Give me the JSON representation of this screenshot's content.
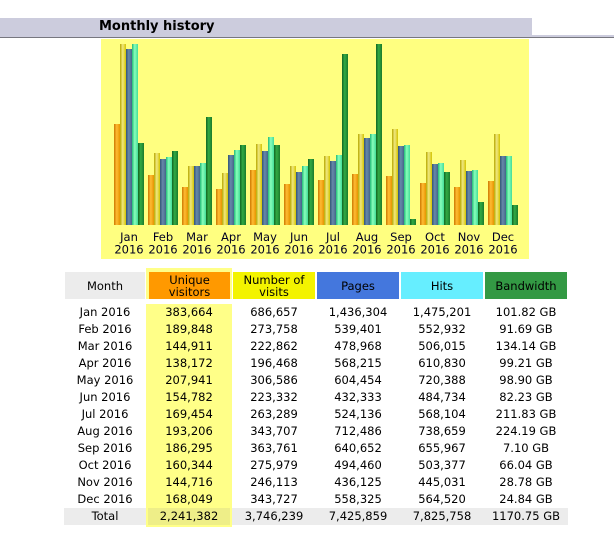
{
  "section": {
    "title": "Monthly history"
  },
  "colors": {
    "header_bg": "#ccccdd",
    "chart_bg": "#ffff80",
    "visitors": "#ff9900",
    "visits": "#f3f300",
    "pages": "#4477dd",
    "hits": "#66eeff",
    "bandwidth": "#339944",
    "visitors_column_bg": "#ffff88",
    "total_row_bg": "#ececec"
  },
  "table": {
    "headers": {
      "month": "Month",
      "visitors": "Unique visitors",
      "visits": "Number of visits",
      "pages": "Pages",
      "hits": "Hits",
      "bandwidth": "Bandwidth"
    },
    "rows": [
      {
        "month": "Jan 2016",
        "visitors": "383,664",
        "visits": "686,657",
        "pages": "1,436,304",
        "hits": "1,475,201",
        "bandwidth": "101.82 GB"
      },
      {
        "month": "Feb 2016",
        "visitors": "189,848",
        "visits": "273,758",
        "pages": "539,401",
        "hits": "552,932",
        "bandwidth": "91.69 GB"
      },
      {
        "month": "Mar 2016",
        "visitors": "144,911",
        "visits": "222,862",
        "pages": "478,968",
        "hits": "506,015",
        "bandwidth": "134.14 GB"
      },
      {
        "month": "Apr 2016",
        "visitors": "138,172",
        "visits": "196,468",
        "pages": "568,215",
        "hits": "610,830",
        "bandwidth": "99.21 GB"
      },
      {
        "month": "May 2016",
        "visitors": "207,941",
        "visits": "306,586",
        "pages": "604,454",
        "hits": "720,388",
        "bandwidth": "98.90 GB"
      },
      {
        "month": "Jun 2016",
        "visitors": "154,782",
        "visits": "223,332",
        "pages": "432,333",
        "hits": "484,734",
        "bandwidth": "82.23 GB"
      },
      {
        "month": "Jul 2016",
        "visitors": "169,454",
        "visits": "263,289",
        "pages": "524,136",
        "hits": "568,104",
        "bandwidth": "211.83 GB"
      },
      {
        "month": "Aug 2016",
        "visitors": "193,206",
        "visits": "343,707",
        "pages": "712,486",
        "hits": "738,659",
        "bandwidth": "224.19 GB"
      },
      {
        "month": "Sep 2016",
        "visitors": "186,295",
        "visits": "363,761",
        "pages": "640,652",
        "hits": "655,967",
        "bandwidth": "7.10 GB"
      },
      {
        "month": "Oct 2016",
        "visitors": "160,344",
        "visits": "275,979",
        "pages": "494,460",
        "hits": "503,377",
        "bandwidth": "66.04 GB"
      },
      {
        "month": "Nov 2016",
        "visitors": "144,716",
        "visits": "246,113",
        "pages": "436,125",
        "hits": "445,031",
        "bandwidth": "28.78 GB"
      },
      {
        "month": "Dec 2016",
        "visitors": "168,049",
        "visits": "343,727",
        "pages": "558,325",
        "hits": "564,520",
        "bandwidth": "24.84 GB"
      }
    ],
    "total": {
      "month": "Total",
      "visitors": "2,241,382",
      "visits": "3,746,239",
      "pages": "7,425,859",
      "hits": "7,825,758",
      "bandwidth": "1170.75 GB"
    }
  },
  "chart_data": {
    "type": "bar",
    "title": "Monthly history",
    "xlabel": "",
    "ylabel": "",
    "grid": false,
    "legend": "none",
    "categories": [
      "Jan 2016",
      "Feb 2016",
      "Mar 2016",
      "Apr 2016",
      "May 2016",
      "Jun 2016",
      "Jul 2016",
      "Aug 2016",
      "Sep 2016",
      "Oct 2016",
      "Nov 2016",
      "Dec 2016"
    ],
    "category_labels": [
      [
        "Jan",
        "2016"
      ],
      [
        "Feb",
        "2016"
      ],
      [
        "Mar",
        "2016"
      ],
      [
        "Apr",
        "2016"
      ],
      [
        "May",
        "2016"
      ],
      [
        "Jun",
        "2016"
      ],
      [
        "Jul",
        "2016"
      ],
      [
        "Aug",
        "2016"
      ],
      [
        "Sep",
        "2016"
      ],
      [
        "Oct",
        "2016"
      ],
      [
        "Nov",
        "2016"
      ],
      [
        "Dec",
        "2016"
      ]
    ],
    "series": [
      {
        "name": "Unique visitors",
        "key": "visitors",
        "scale_group": "visits",
        "values": [
          383664,
          189848,
          144911,
          138172,
          207941,
          154782,
          169454,
          193206,
          186295,
          160344,
          144716,
          168049
        ]
      },
      {
        "name": "Number of visits",
        "key": "visits",
        "scale_group": "visits",
        "values": [
          686657,
          273758,
          222862,
          196468,
          306586,
          223332,
          263289,
          343707,
          363761,
          275979,
          246113,
          343727
        ]
      },
      {
        "name": "Pages",
        "key": "pages",
        "scale_group": "hits",
        "values": [
          1436304,
          539401,
          478968,
          568215,
          604454,
          432333,
          524136,
          712486,
          640652,
          494460,
          436125,
          558325
        ]
      },
      {
        "name": "Hits",
        "key": "hits",
        "scale_group": "hits",
        "values": [
          1475201,
          552932,
          506015,
          610830,
          720388,
          484734,
          568104,
          738659,
          655967,
          503377,
          445031,
          564520
        ]
      },
      {
        "name": "Bandwidth (GB)",
        "key": "bandwidth",
        "scale_group": "bandwidth",
        "values": [
          101.82,
          91.69,
          134.14,
          99.21,
          98.9,
          82.23,
          211.83,
          224.19,
          7.1,
          66.04,
          28.78,
          24.84
        ]
      }
    ]
  }
}
